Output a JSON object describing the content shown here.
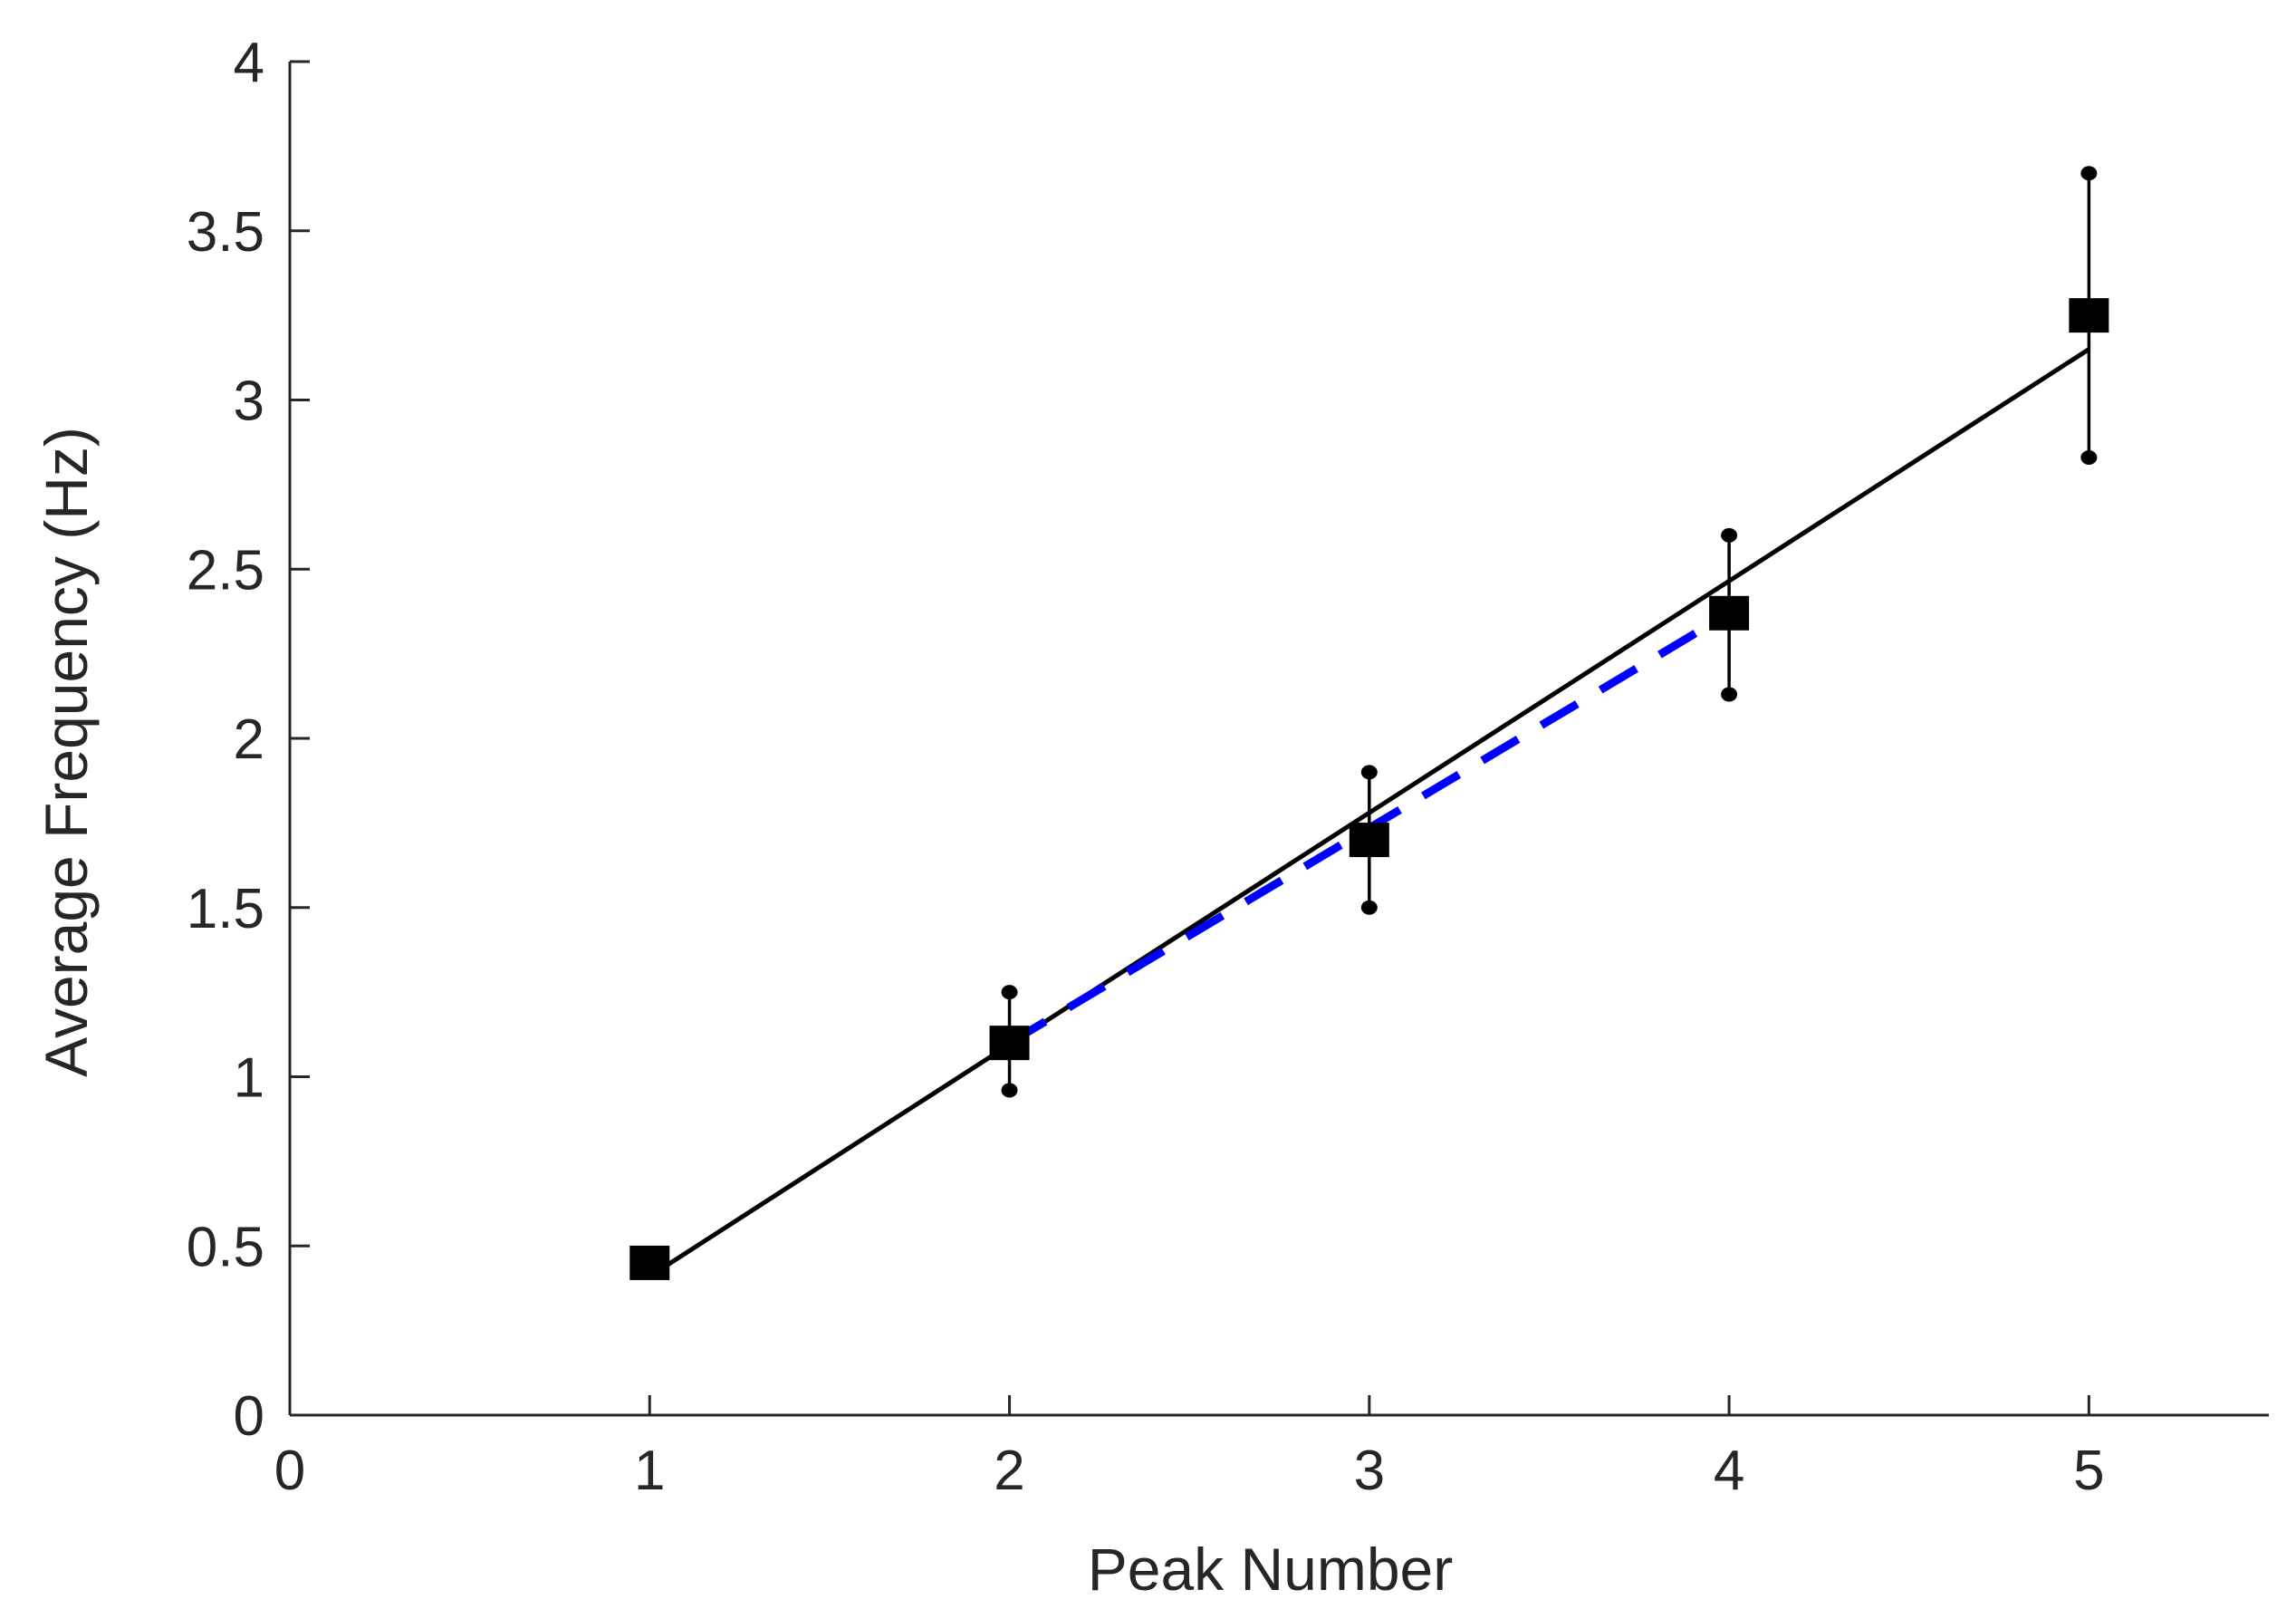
{
  "chart_data": {
    "type": "scatter",
    "title": "",
    "xlabel": "Peak Number",
    "ylabel": "Average Frequency (Hz)",
    "xlim": [
      0,
      5.5
    ],
    "ylim": [
      0,
      4
    ],
    "x_ticks": [
      "0",
      "1",
      "2",
      "3",
      "4",
      "5"
    ],
    "y_ticks": [
      "0",
      "0.5",
      "1",
      "1.5",
      "2",
      "2.5",
      "3",
      "3.5",
      "4"
    ],
    "grid": false,
    "legend": "none",
    "series": [
      {
        "kind": "points-with-error-bars",
        "color": "#000000",
        "marker": "square",
        "x": [
          1,
          2,
          3,
          4,
          5
        ],
        "y": [
          0.45,
          1.1,
          1.7,
          2.37,
          3.25
        ],
        "err_low": [
          0.44,
          0.96,
          1.5,
          2.13,
          2.83
        ],
        "err_high": [
          0.46,
          1.25,
          1.9,
          2.6,
          3.67
        ]
      },
      {
        "kind": "fit-line",
        "color": "#000000",
        "dash": "solid",
        "x": [
          1,
          5
        ],
        "y": [
          0.41,
          3.15
        ]
      },
      {
        "kind": "fit-line",
        "color": "#0000ff",
        "dash": "dashed",
        "x": [
          2,
          4
        ],
        "y": [
          1.1,
          2.37
        ]
      }
    ]
  }
}
